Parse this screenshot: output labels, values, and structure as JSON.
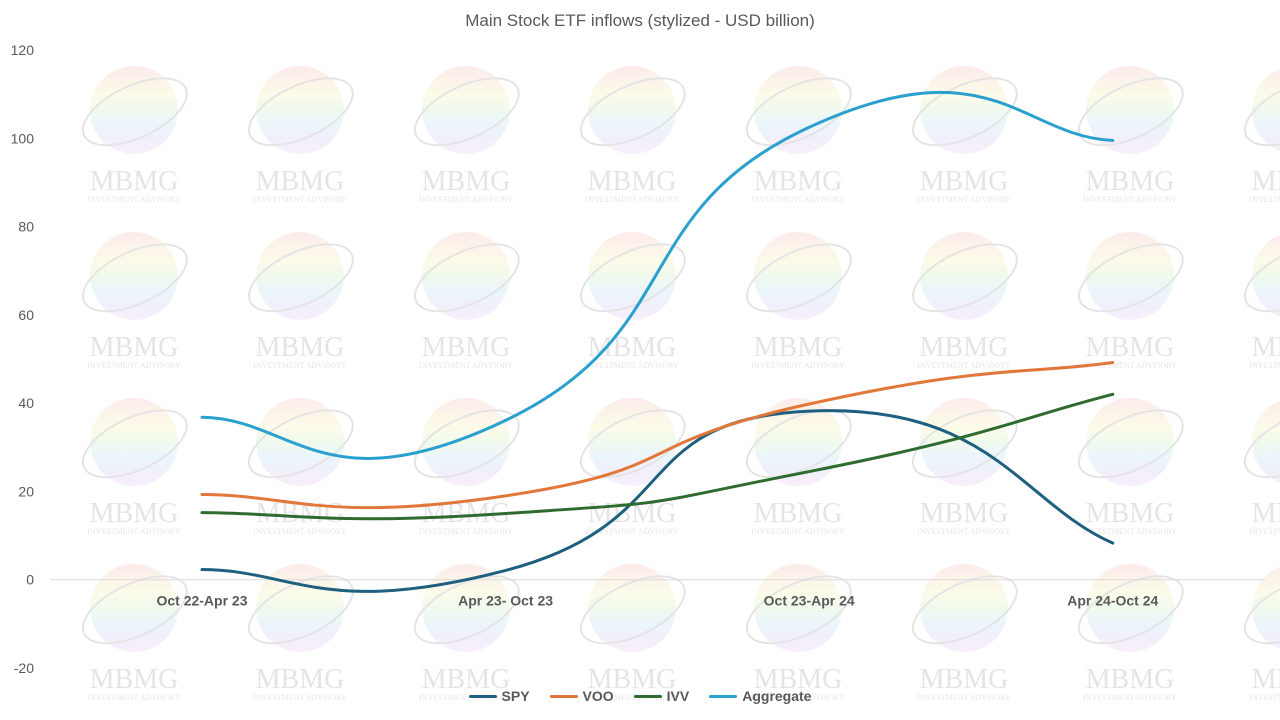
{
  "chart_data": {
    "type": "line",
    "title": "Main Stock ETF inflows (stylized - USD billion)",
    "categories": [
      "Oct 22-Apr 23",
      "Apr 23- Oct 23",
      "Oct 23-Apr 24",
      "Apr 24-Oct 24"
    ],
    "ylim": [
      -20,
      120
    ],
    "yticks": [
      -20,
      0,
      20,
      40,
      60,
      80,
      100,
      120
    ],
    "grid": false,
    "smooth": true,
    "legend_position": "bottom",
    "series": [
      {
        "name": "SPY",
        "color": "#1f5f7f",
        "values": [
          2.3,
          2.1,
          38.2,
          8.3
        ]
      },
      {
        "name": "VOO",
        "color": "#e2773a",
        "values": [
          19.3,
          19.0,
          39.8,
          49.2
        ]
      },
      {
        "name": "IVV",
        "color": "#2e6b2e",
        "values": [
          15.2,
          15.0,
          24.5,
          42.0
        ]
      },
      {
        "name": "Aggregate",
        "color": "#2aa0cf",
        "values": [
          36.8,
          36.1,
          102.5,
          99.5
        ]
      }
    ]
  },
  "watermark": {
    "text": "MBMG",
    "subtext": "INVESTMENT ADVISORY"
  }
}
